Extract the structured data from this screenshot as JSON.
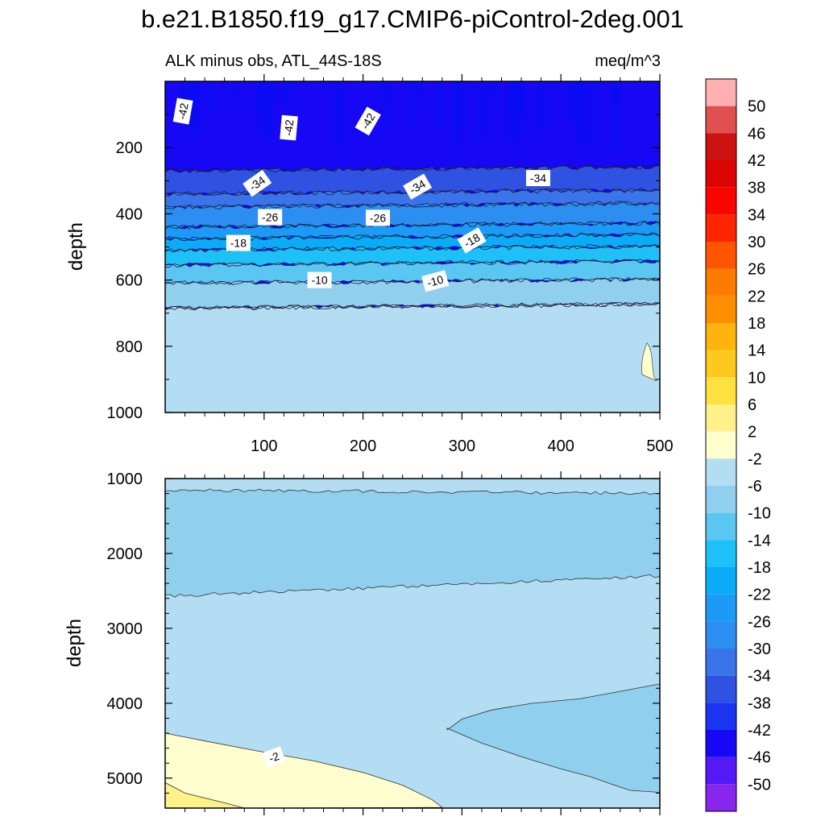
{
  "title": "b.e21.B1850.f19_g17.CMIP6-piControl-2deg.001",
  "subtitle_left": "ALK minus obs, ATL_44S-18S",
  "subtitle_right": "meq/m^3",
  "colors": {
    "levels": [
      {
        "max": -50,
        "color": "#8826ee"
      },
      {
        "max": -46,
        "color": "#5419f5"
      },
      {
        "max": -42,
        "color": "#1607f5"
      },
      {
        "max": -38,
        "color": "#1a34f0"
      },
      {
        "max": -34,
        "color": "#2f52e2"
      },
      {
        "max": -30,
        "color": "#3a74ea"
      },
      {
        "max": -26,
        "color": "#2b8ef0"
      },
      {
        "max": -22,
        "color": "#1b9af7"
      },
      {
        "max": -18,
        "color": "#0aacf8"
      },
      {
        "max": -14,
        "color": "#1dc1f8"
      },
      {
        "max": -10,
        "color": "#5ac6f2"
      },
      {
        "max": -6,
        "color": "#91cfee"
      },
      {
        "max": -2,
        "color": "#b3ddf2"
      },
      {
        "max": 2,
        "color": "#fefdcd"
      },
      {
        "max": 6,
        "color": "#fff18a"
      },
      {
        "max": 10,
        "color": "#fee13e"
      },
      {
        "max": 14,
        "color": "#fcc91c"
      },
      {
        "max": 18,
        "color": "#feb30d"
      },
      {
        "max": 22,
        "color": "#fe8e00"
      },
      {
        "max": 26,
        "color": "#fe7b02"
      },
      {
        "max": 30,
        "color": "#fe5500"
      },
      {
        "max": 34,
        "color": "#fe2500"
      },
      {
        "max": 38,
        "color": "#fa0500"
      },
      {
        "max": 42,
        "color": "#dc0400"
      },
      {
        "max": 46,
        "color": "#cd1212"
      },
      {
        "max": 50,
        "color": "#e05050"
      },
      {
        "max": 999,
        "color": "#feb0b0"
      }
    ]
  },
  "chart_data": [
    {
      "type": "heatmap",
      "panel": "upper",
      "xlabel": "",
      "ylabel": "depth",
      "xlim": [
        0,
        500
      ],
      "ylim": [
        1000,
        0
      ],
      "x_ticks": [
        100,
        200,
        300,
        400,
        500
      ],
      "y_ticks": [
        200,
        400,
        600,
        800,
        1000
      ],
      "bands": [
        {
          "value": -44,
          "from": 0,
          "to": 270
        },
        {
          "value": -36,
          "from": 270,
          "to": 340
        },
        {
          "value": -32,
          "from": 340,
          "to": 380
        },
        {
          "value": -28,
          "from": 380,
          "to": 440
        },
        {
          "value": -24,
          "from": 440,
          "to": 475
        },
        {
          "value": -20,
          "from": 475,
          "to": 510
        },
        {
          "value": -16,
          "from": 510,
          "to": 555
        },
        {
          "value": -12,
          "from": 555,
          "to": 610
        },
        {
          "value": -8,
          "from": 610,
          "to": 685
        },
        {
          "value": -4,
          "from": 685,
          "to": 1000
        }
      ],
      "contour_labels": [
        {
          "text": "-42",
          "x": 18,
          "y": 90,
          "rot": -80
        },
        {
          "text": "-42",
          "x": 125,
          "y": 140,
          "rot": -85
        },
        {
          "text": "-42",
          "x": 205,
          "y": 120,
          "rot": -60
        },
        {
          "text": "-34",
          "x": 93,
          "y": 308,
          "rot": -35
        },
        {
          "text": "-34",
          "x": 255,
          "y": 318,
          "rot": -30
        },
        {
          "text": "-34",
          "x": 377,
          "y": 292,
          "rot": 0
        },
        {
          "text": "-26",
          "x": 106,
          "y": 410,
          "rot": 0
        },
        {
          "text": "-26",
          "x": 215,
          "y": 412,
          "rot": 0
        },
        {
          "text": "-18",
          "x": 74,
          "y": 488,
          "rot": 0
        },
        {
          "text": "-18",
          "x": 310,
          "y": 480,
          "rot": -30
        },
        {
          "text": "-10",
          "x": 156,
          "y": 600,
          "rot": 0
        },
        {
          "text": "-10",
          "x": 273,
          "y": 603,
          "rot": -15
        }
      ],
      "features": [
        {
          "value": 0,
          "x": 487,
          "y_range": [
            790,
            905
          ],
          "shape": "small patch"
        }
      ]
    },
    {
      "type": "heatmap",
      "panel": "lower",
      "xlabel": "",
      "ylabel": "depth",
      "xlim": [
        0,
        500
      ],
      "ylim": [
        5400,
        1000
      ],
      "y_ticks": [
        1000,
        2000,
        3000,
        4000,
        5000
      ],
      "x_ticks": [
        100,
        200,
        300,
        400,
        500
      ],
      "regions": [
        {
          "value": -4,
          "description": "background, most of section"
        },
        {
          "value": -8,
          "description": "band from about 1150 m to 2300-2550 m depth"
        },
        {
          "value": -8,
          "description": "tongue from x~285 at ~4350 m extending east to x=500 (3750-5200 m)"
        },
        {
          "value": 0,
          "description": "bottom-left corner below a line from (0, 4400) to (260, 5400)"
        },
        {
          "value": 4,
          "description": "small patch in the far bottom-left corner"
        }
      ],
      "contour_labels": [
        {
          "text": "-2",
          "x": 110,
          "y": 4720,
          "rot": -20
        }
      ]
    }
  ],
  "colorbar_labels": [
    "50",
    "46",
    "42",
    "38",
    "34",
    "30",
    "26",
    "22",
    "18",
    "14",
    "10",
    "6",
    "2",
    "-2",
    "-6",
    "-10",
    "-14",
    "-18",
    "-22",
    "-26",
    "-30",
    "-34",
    "-38",
    "-42",
    "-46",
    "-50"
  ],
  "ticks": {
    "upper_y": [
      "200",
      "400",
      "600",
      "800",
      "1000"
    ],
    "upper_x": [
      "100",
      "200",
      "300",
      "400",
      "500"
    ],
    "lower_y": [
      "1000",
      "2000",
      "3000",
      "4000",
      "5000"
    ]
  }
}
